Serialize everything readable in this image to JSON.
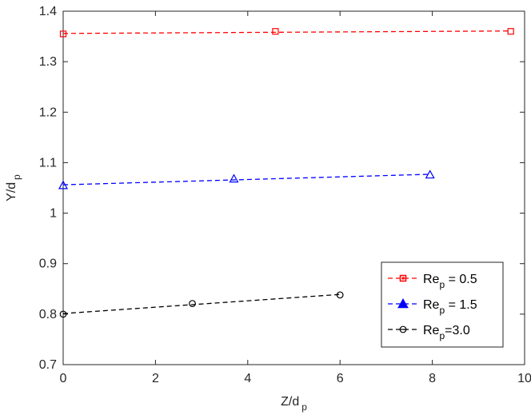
{
  "chart_data": {
    "type": "line",
    "xlabel": {
      "main": "Z/d",
      "sub": "p"
    },
    "ylabel": {
      "main": "Y/d",
      "sub": "p"
    },
    "xlim": [
      0,
      10
    ],
    "ylim": [
      0.7,
      1.4
    ],
    "xticks": [
      0,
      2,
      4,
      6,
      8,
      10
    ],
    "xtick_labels": [
      "0",
      "2",
      "4",
      "6",
      "8",
      "10"
    ],
    "yticks": [
      0.7,
      0.8,
      0.9,
      1.0,
      1.1,
      1.2,
      1.3,
      1.4
    ],
    "ytick_labels": [
      "0.7",
      "0.8",
      "0.9",
      "1",
      "1.1",
      "1.2",
      "1.3",
      "1.4"
    ],
    "grid": false,
    "legend_position": "bottom-right",
    "series": [
      {
        "label_main": "Re",
        "label_sub": "p",
        "label_rest": " = 0.5",
        "color": "#ff0000",
        "marker": "square",
        "line_style": "dashed",
        "x": [
          0,
          4.6,
          9.7
        ],
        "y": [
          1.355,
          1.36,
          1.36
        ]
      },
      {
        "label_main": "Re",
        "label_sub": "p",
        "label_rest": " = 1.5",
        "color": "#0000ff",
        "marker": "triangle",
        "line_style": "dashed",
        "x": [
          0,
          3.7,
          7.95
        ],
        "y": [
          1.055,
          1.068,
          1.076
        ]
      },
      {
        "label_main": "Re",
        "label_sub": "p",
        "label_rest": "=3.0",
        "color": "#000000",
        "marker": "circle",
        "line_style": "dashed",
        "x": [
          0,
          2.8,
          6.0
        ],
        "y": [
          0.8,
          0.821,
          0.838
        ]
      }
    ]
  }
}
